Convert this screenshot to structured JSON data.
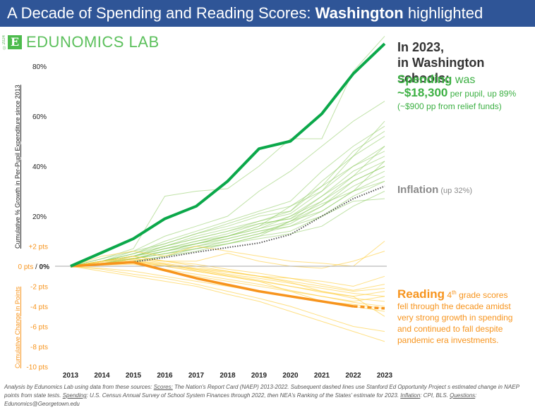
{
  "header": {
    "title_prefix": "A Decade of Spending and Reading Scores: ",
    "title_state": "Washington",
    "title_suffix": " highlighted"
  },
  "logo": {
    "copyright": "©2024",
    "mark": "E",
    "name": "EDUNOMICS LAB"
  },
  "annotations": {
    "headline_line1": "In 2023,",
    "headline_line2": "in Washington schools:",
    "spending_label": "Spending",
    "spending_was": " was",
    "spending_amount": "~$18,300",
    "spending_detail": " per pupil, up 89%",
    "spending_relief": "(~$900 pp from relief funds)",
    "inflation_label": "Inflation",
    "inflation_detail": " (up 32%)",
    "reading_label": "Reading",
    "reading_grade": " 4",
    "reading_sup": "th",
    "reading_line1": " grade scores",
    "reading_line2": "fell through the decade amidst",
    "reading_line3": "very strong growth in spending",
    "reading_line4": "and continued to fall despite",
    "reading_line5": "pandemic era investments."
  },
  "footer": {
    "t1": "Analysis by Edunomics Lab using data from these sources: ",
    "scores_label": "Scores:",
    "t2": " The Nation's Report Card (NAEP) 2013-2022. Subsequent dashed lines use Stanford Ed Opportunity Project s estimated  change in NAEP points from state tests. ",
    "spending_label": "Spending",
    "t3": ": U.S. Census Annual Survey of School System Finances through 2022, then NEA's Ranking of the States' estimate for 2023. ",
    "inflation_label": "Inflation",
    "t4": ": CPI, BLS. ",
    "questions_label": "Questions",
    "t5": ": Edunomics@Georgetown.edu"
  },
  "colors": {
    "header_bg": "#2F5597",
    "spending_highlight": "#0BA84A",
    "spending_others": "#8CCB5E",
    "reading_highlight": "#F7941D",
    "reading_others": "#FFCC33",
    "inflation": "#555555",
    "baseline": "#AAAAAA"
  },
  "chart_data": {
    "type": "line",
    "title": "A Decade of Spending and Reading Scores: Washington highlighted",
    "x": [
      2013,
      2014,
      2015,
      2016,
      2017,
      2018,
      2019,
      2020,
      2021,
      2022,
      2023
    ],
    "xtick_labels": [
      "2013",
      "2014",
      "2015",
      "2016",
      "2017",
      "2018",
      "2019",
      "2020",
      "2021",
      "2022",
      "2023"
    ],
    "ylabel_spending": "Cumulative % Growth in Per-Pupil Expenditure since 2013",
    "ylabel_reading": "Cumulative Change in Points",
    "y_spending_ticks": [
      "80%",
      "60%",
      "40%",
      "20%"
    ],
    "y_reading_ticks": [
      "+2 pts",
      "-2 pts",
      "-4 pts",
      "-6 pts",
      "-8 pts",
      "-10 pts"
    ],
    "zero_label_pts": "0 pts",
    "zero_sep": " / ",
    "zero_label_pct": "0%",
    "y_spending_range": [
      0,
      90
    ],
    "y_reading_range": [
      -10,
      4
    ],
    "series": [
      {
        "name": "Washington spending growth (%)",
        "axis": "spending",
        "highlight": true,
        "values": [
          0,
          5.5,
          11,
          19,
          24,
          34,
          47,
          50,
          61,
          77,
          89
        ]
      },
      {
        "name": "Inflation (CPI, %)",
        "axis": "spending",
        "style": "dotted",
        "values": [
          0,
          0.8,
          1.7,
          3.5,
          5.6,
          7.5,
          9.3,
          12.7,
          20,
          27,
          32
        ]
      },
      {
        "name": "Washington 4th grade reading change (pts)",
        "axis": "reading",
        "highlight": true,
        "x": [
          2013,
          2015,
          2017,
          2019,
          2022
        ],
        "values": [
          0,
          0.4,
          -1.2,
          -2.5,
          -4.0
        ],
        "projected": {
          "x": [
            2022,
            2023
          ],
          "values": [
            -4.0,
            -4.2
          ]
        }
      }
    ],
    "other_states_spending": [
      [
        0,
        3,
        7,
        28,
        30,
        31,
        40,
        51,
        51,
        78,
        92
      ],
      [
        0,
        2,
        6,
        12,
        16,
        20,
        30,
        38,
        48,
        58,
        66
      ],
      [
        0,
        2,
        5,
        10,
        14,
        18,
        22,
        26,
        38,
        48,
        56
      ],
      [
        0,
        3,
        6,
        9,
        13,
        16,
        20,
        22,
        34,
        44,
        52
      ],
      [
        0,
        2,
        4,
        8,
        12,
        15,
        18,
        21,
        30,
        40,
        48
      ],
      [
        0,
        2,
        4,
        7,
        10,
        13,
        17,
        19,
        28,
        38,
        44
      ],
      [
        0,
        1,
        3,
        6,
        9,
        12,
        15,
        18,
        26,
        36,
        42
      ],
      [
        0,
        2,
        4,
        6,
        8,
        11,
        14,
        17,
        24,
        34,
        40
      ],
      [
        0,
        1,
        3,
        5,
        8,
        10,
        13,
        16,
        22,
        30,
        36
      ],
      [
        0,
        1,
        2,
        4,
        7,
        9,
        12,
        14,
        20,
        28,
        34
      ],
      [
        0,
        2,
        5,
        9,
        13,
        17,
        21,
        24,
        30,
        44,
        58
      ],
      [
        0,
        1,
        4,
        8,
        11,
        14,
        18,
        22,
        32,
        46,
        54
      ],
      [
        0,
        2,
        3,
        6,
        9,
        12,
        16,
        24,
        32,
        40,
        46
      ],
      [
        0,
        1,
        3,
        5,
        7,
        10,
        13,
        18,
        24,
        32,
        38
      ],
      [
        0,
        2,
        4,
        7,
        10,
        12,
        15,
        20,
        26,
        34,
        40
      ],
      [
        0,
        1,
        2,
        4,
        6,
        9,
        11,
        13,
        16,
        24,
        30
      ],
      [
        0,
        1,
        3,
        6,
        9,
        11,
        14,
        16,
        20,
        26,
        27
      ],
      [
        0,
        2,
        4,
        7,
        9,
        12,
        16,
        20,
        28,
        36,
        48
      ],
      [
        0,
        1,
        3,
        5,
        7,
        9,
        12,
        18,
        22,
        30,
        42
      ],
      [
        0,
        2,
        5,
        8,
        11,
        14,
        17,
        19,
        25,
        30,
        34
      ]
    ],
    "other_states_reading": [
      [
        0,
        1,
        1.5,
        1,
        2,
        1.5,
        1,
        0.5,
        0.3,
        0,
        2.5
      ],
      [
        0,
        0.5,
        1,
        0.5,
        0.5,
        1.3,
        0.5,
        0,
        -0.2,
        0.5,
        1.5
      ],
      [
        0,
        0.5,
        1,
        0.5,
        0,
        -0.5,
        -1,
        -1.2,
        -1.5,
        -2,
        -1
      ],
      [
        0,
        0.2,
        0.5,
        0,
        -0.5,
        -1,
        -1.5,
        -2,
        -2.5,
        -3,
        -2.5
      ],
      [
        0,
        0.3,
        0.3,
        -0.5,
        -1,
        -1.5,
        -2,
        -2.5,
        -3,
        -3.5,
        -3
      ],
      [
        0,
        0.5,
        0.8,
        0.3,
        -0.2,
        -0.5,
        -1,
        -1.5,
        -2,
        -2.5,
        -2.2
      ],
      [
        0,
        -0.2,
        -0.5,
        -1,
        -1.5,
        -2,
        -2.5,
        -3,
        -3.5,
        -4,
        -4.5
      ],
      [
        0,
        -0.3,
        -0.8,
        -1.2,
        -1.8,
        -2.5,
        -3.2,
        -4,
        -5,
        -6,
        -6.5
      ],
      [
        0,
        -0.5,
        -1,
        -1.5,
        -2,
        -2.8,
        -3.5,
        -4.5,
        -5.5,
        -6.5,
        -7.5
      ],
      [
        0,
        0.3,
        0.5,
        0.2,
        -0.3,
        -0.8,
        -1.2,
        -1.7,
        -2.2,
        -2.7,
        -3
      ],
      [
        0,
        0.2,
        0.3,
        0,
        -0.5,
        -1,
        -1.5,
        -2.5,
        -3.5,
        -3.8,
        -4.2
      ],
      [
        0,
        0.4,
        0.7,
        0.5,
        0.2,
        -0.3,
        -0.7,
        -1.2,
        -1.8,
        -2.4,
        -1.8
      ],
      [
        0,
        0.2,
        0.4,
        0.1,
        -0.3,
        -0.6,
        -1,
        -1.6,
        -2.5,
        -3.2,
        -3.5
      ],
      [
        0,
        0.3,
        0.6,
        0.2,
        -0.4,
        -0.9,
        -1.4,
        -2,
        -2.6,
        -3,
        -5
      ],
      [
        0,
        0.1,
        0.2,
        -0.3,
        -0.8,
        -1.3,
        -1.8,
        -2.4,
        -3,
        -3.6,
        -4
      ]
    ]
  }
}
